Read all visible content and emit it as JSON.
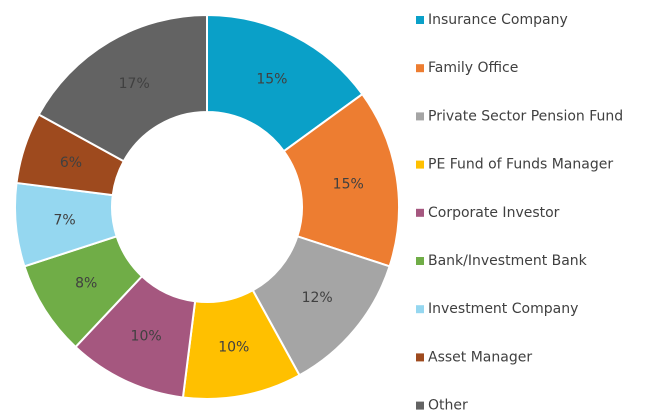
{
  "chart_data": {
    "type": "donut",
    "categories": [
      "Insurance Company",
      "Family Office",
      "Private Sector Pension Fund",
      "PE Fund of Funds Manager",
      "Corporate Investor",
      "Bank/Investment Bank",
      "Investment Company",
      "Asset Manager",
      "Other"
    ],
    "values": [
      15,
      15,
      12,
      10,
      10,
      8,
      7,
      6,
      17
    ],
    "value_labels": [
      "15%",
      "15%",
      "12%",
      "10%",
      "10%",
      "8%",
      "7%",
      "6%",
      "17%"
    ],
    "colors": [
      "#0aa0c8",
      "#ed7d31",
      "#a5a5a5",
      "#ffc000",
      "#a5577f",
      "#70ad47",
      "#95d7f0",
      "#9e4a1e",
      "#636363"
    ],
    "legend": "right"
  }
}
